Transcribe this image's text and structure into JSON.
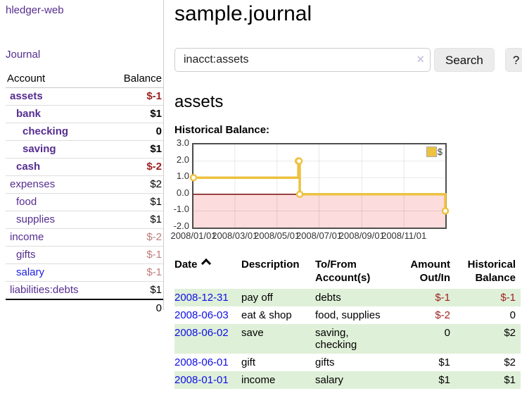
{
  "app": {
    "title": "hledger-web"
  },
  "colors": {
    "link_purple": "#552d90",
    "link_blue": "#1d1de0",
    "date_link_blue": "#0e0ee8",
    "negative_red": "#9e1f1f",
    "negative_red_muted": "#c07c7c",
    "row_green": "#dff0d8",
    "chart_line_yellow": "#edc240",
    "chart_negative_fill": "#fcdcdc",
    "chart_zero_line": "#7a0d0d"
  },
  "sidebar": {
    "journal_link": "Journal",
    "table": {
      "headers": {
        "account": "Account",
        "balance": "Balance"
      },
      "accounts": [
        {
          "name": "assets",
          "balance": "$-1",
          "depth": 1,
          "bold": true,
          "name_style": "purple",
          "balance_style": "negative"
        },
        {
          "name": "bank",
          "balance": "$1",
          "depth": 2,
          "bold": true,
          "name_style": "purple",
          "balance_style": "normal"
        },
        {
          "name": "checking",
          "balance": "0",
          "depth": 3,
          "bold": true,
          "name_style": "purple",
          "balance_style": "normal"
        },
        {
          "name": "saving",
          "balance": "$1",
          "depth": 3,
          "bold": true,
          "name_style": "purple",
          "balance_style": "normal"
        },
        {
          "name": "cash",
          "balance": "$-2",
          "depth": 2,
          "bold": true,
          "name_style": "purple",
          "balance_style": "negative"
        },
        {
          "name": "expenses",
          "balance": "$2",
          "depth": 1,
          "bold": false,
          "name_style": "purple",
          "balance_style": "normal"
        },
        {
          "name": "food",
          "balance": "$1",
          "depth": 2,
          "bold": false,
          "name_style": "purple",
          "balance_style": "normal"
        },
        {
          "name": "supplies",
          "balance": "$1",
          "depth": 2,
          "bold": false,
          "name_style": "purple",
          "balance_style": "normal"
        },
        {
          "name": "income",
          "balance": "$-2",
          "depth": 1,
          "bold": false,
          "name_style": "purple",
          "balance_style": "negative_muted"
        },
        {
          "name": "gifts",
          "balance": "$-1",
          "depth": 2,
          "bold": false,
          "name_style": "purple",
          "balance_style": "negative_muted"
        },
        {
          "name": "salary",
          "balance": "$-1",
          "depth": 2,
          "bold": false,
          "name_style": "blue",
          "balance_style": "negative_muted"
        },
        {
          "name": "liabilities:debts",
          "balance": "$1",
          "depth": 1,
          "bold": false,
          "name_style": "purple",
          "balance_style": "normal"
        }
      ],
      "total": "0"
    }
  },
  "main": {
    "title": "sample.journal",
    "search": {
      "value": "inacct:assets",
      "clear_glyph": "×",
      "button_label": "Search",
      "help_label": "?"
    },
    "account_heading": "assets",
    "chart_label": "Historical Balance:"
  },
  "chart_data": {
    "type": "line",
    "title": "Historical Balance:",
    "series": [
      {
        "name": "$",
        "color": "#edc240",
        "step": true,
        "points": [
          [
            "2008-01-01",
            1
          ],
          [
            "2008-06-01",
            2
          ],
          [
            "2008-06-02",
            2
          ],
          [
            "2008-06-03",
            0
          ],
          [
            "2008-12-31",
            -1
          ]
        ]
      }
    ],
    "xlim": [
      "2008-01-01",
      "2008-12-31"
    ],
    "ylim": [
      -2,
      3
    ],
    "x_ticks": [
      "2008/01/01",
      "2008/03/01",
      "2008/05/01",
      "2008/07/01",
      "2008/09/01",
      "2008/11/01"
    ],
    "y_ticks": [
      "3.0",
      "2.0",
      "1.0",
      "0.0",
      "-1.0",
      "-2.0"
    ],
    "grid": true,
    "negative_region_color": "#fcdcdc",
    "zero_line_color": "#7a0d0d",
    "legend": {
      "label": "$",
      "position": "top-right"
    }
  },
  "register": {
    "headers": {
      "date": "Date",
      "description": "Description",
      "accounts": "To/From Account(s)",
      "amount": "Amount Out/In",
      "balance": "Historical Balance"
    },
    "rows": [
      {
        "date": "2008-12-31",
        "description": "pay off",
        "accounts": "debts",
        "amount": "$-1",
        "amount_negative": true,
        "balance": "$-1",
        "balance_negative": true
      },
      {
        "date": "2008-06-03",
        "description": "eat & shop",
        "accounts": "food, supplies",
        "amount": "$-2",
        "amount_negative": true,
        "balance": "0",
        "balance_negative": false
      },
      {
        "date": "2008-06-02",
        "description": "save",
        "accounts": "saving,\nchecking",
        "amount": "0",
        "amount_negative": false,
        "balance": "$2",
        "balance_negative": false
      },
      {
        "date": "2008-06-01",
        "description": "gift",
        "accounts": "gifts",
        "amount": "$1",
        "amount_negative": false,
        "balance": "$2",
        "balance_negative": false
      },
      {
        "date": "2008-01-01",
        "description": "income",
        "accounts": "salary",
        "amount": "$1",
        "amount_negative": false,
        "balance": "$1",
        "balance_negative": false
      }
    ]
  }
}
